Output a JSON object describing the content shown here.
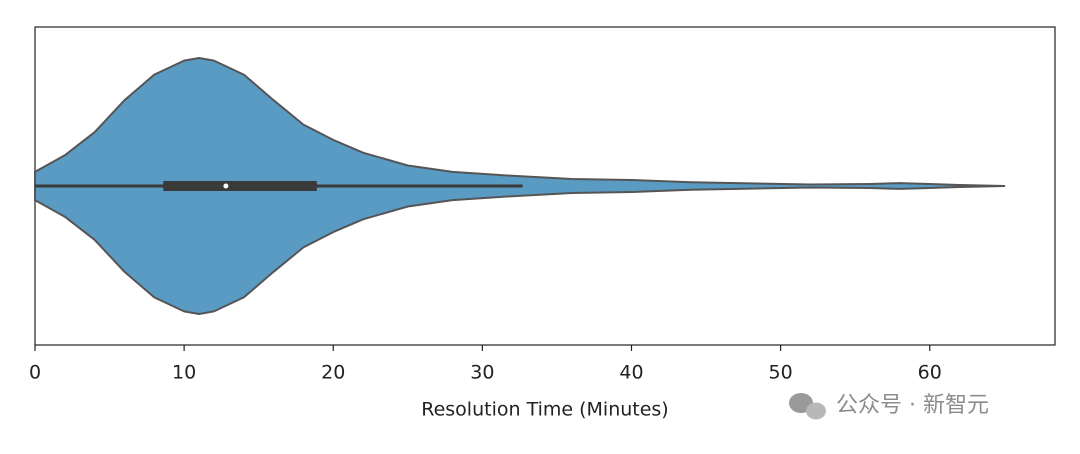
{
  "chart_data": {
    "type": "violin",
    "xlabel": "Resolution Time (Minutes)",
    "xlim": [
      0,
      68.4
    ],
    "xticks": [
      0,
      10,
      20,
      30,
      40,
      50,
      60
    ],
    "color": "#5a9bc4",
    "edge_color": "#555555",
    "box_color": "#3a3a3a",
    "kde_x": [
      0,
      2,
      4,
      6,
      8,
      10,
      11,
      12,
      14,
      16,
      18,
      20,
      22,
      25,
      28,
      32,
      36,
      40,
      44,
      48,
      52,
      56,
      58,
      60,
      62,
      65
    ],
    "density": [
      0.11,
      0.24,
      0.42,
      0.67,
      0.87,
      0.98,
      1.0,
      0.98,
      0.87,
      0.67,
      0.48,
      0.36,
      0.26,
      0.16,
      0.11,
      0.08,
      0.055,
      0.047,
      0.03,
      0.02,
      0.012,
      0.016,
      0.023,
      0.016,
      0.008,
      0
    ],
    "whisker_low": 0,
    "q1": 8.6,
    "median": 12.8,
    "q3": 18.9,
    "whisker_high": 32.7,
    "watermark": "公众号 · 新智元"
  }
}
